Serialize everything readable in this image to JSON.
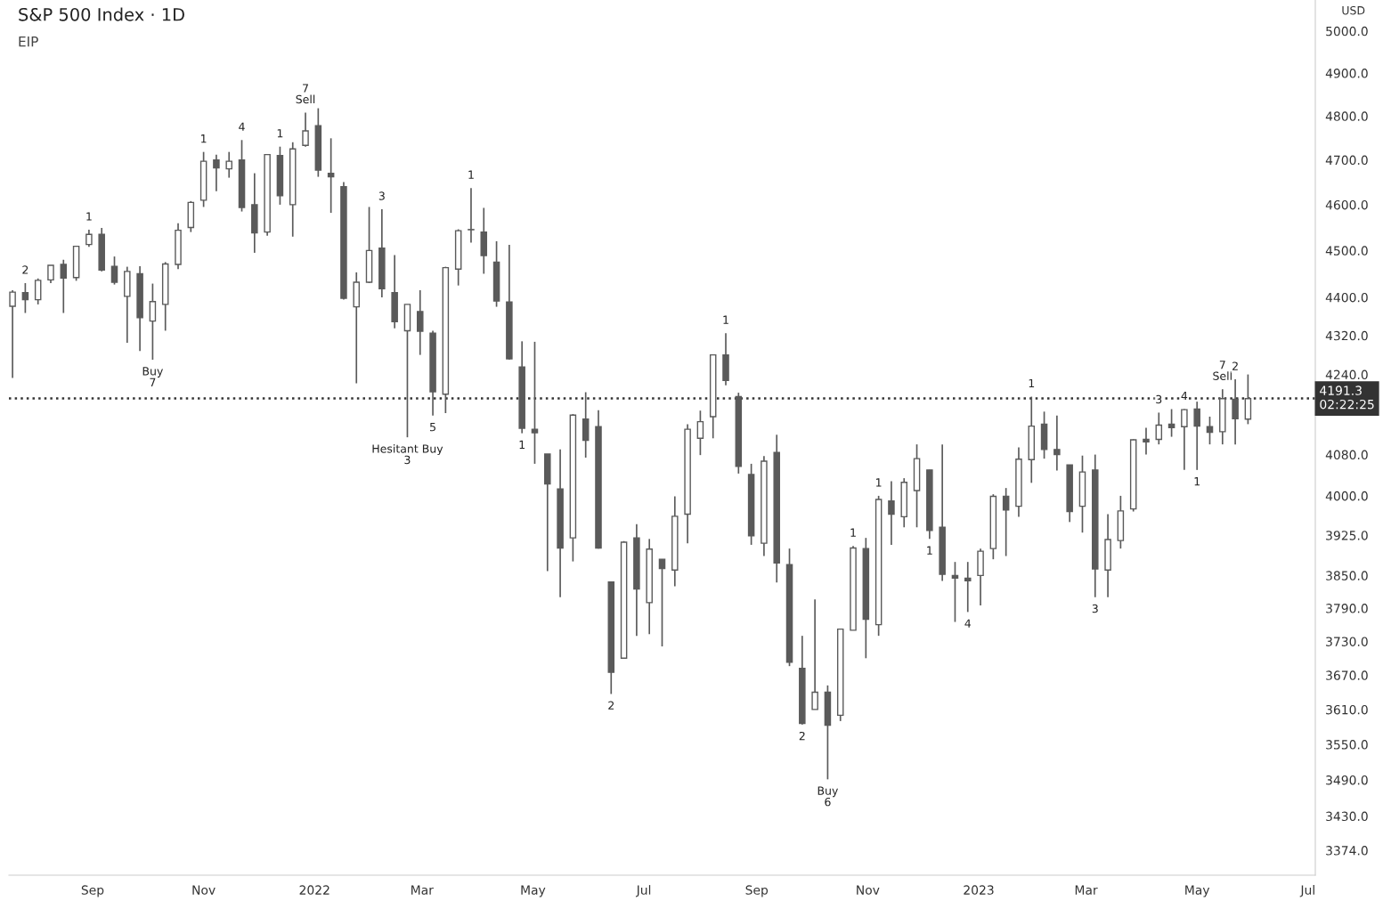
{
  "chart_data": {
    "type": "candlestick",
    "title": "S&P 500 Index · 1D",
    "subtitle": "EIP",
    "ylabel": "USD",
    "color": "#5a5a5a",
    "log": "y",
    "grid": false,
    "x": [
      "2021-07-19",
      "2021-07-26",
      "2021-08-02",
      "2021-08-09",
      "2021-08-16",
      "2021-08-23",
      "2021-08-30",
      "2021-09-06",
      "2021-09-13",
      "2021-09-20",
      "2021-09-27",
      "2021-10-04",
      "2021-10-11",
      "2021-10-18",
      "2021-10-25",
      "2021-11-01",
      "2021-11-08",
      "2021-11-15",
      "2021-11-22",
      "2021-11-29",
      "2021-12-06",
      "2021-12-13",
      "2021-12-20",
      "2021-12-27",
      "2022-01-03",
      "2022-01-10",
      "2022-01-17",
      "2022-01-24",
      "2022-01-31",
      "2022-02-07",
      "2022-02-14",
      "2022-02-21",
      "2022-02-28",
      "2022-03-07",
      "2022-03-14",
      "2022-03-21",
      "2022-03-28",
      "2022-04-04",
      "2022-04-11",
      "2022-04-18",
      "2022-04-25",
      "2022-05-02",
      "2022-05-09",
      "2022-05-16",
      "2022-05-23",
      "2022-05-30",
      "2022-06-06",
      "2022-06-13",
      "2022-06-20",
      "2022-06-27",
      "2022-07-04",
      "2022-07-11",
      "2022-07-18",
      "2022-07-25",
      "2022-08-01",
      "2022-08-08",
      "2022-08-15",
      "2022-08-22",
      "2022-08-29",
      "2022-09-05",
      "2022-09-12",
      "2022-09-19",
      "2022-09-26",
      "2022-10-03",
      "2022-10-10",
      "2022-10-17",
      "2022-10-24",
      "2022-10-31",
      "2022-11-07",
      "2022-11-14",
      "2022-11-21",
      "2022-11-28",
      "2022-12-05",
      "2022-12-12",
      "2022-12-19",
      "2022-12-26",
      "2023-01-02",
      "2023-01-09",
      "2023-01-16",
      "2023-01-23",
      "2023-01-30",
      "2023-02-06",
      "2023-02-13",
      "2023-02-20",
      "2023-02-27",
      "2023-03-06",
      "2023-03-13",
      "2023-03-20",
      "2023-03-27",
      "2023-04-03",
      "2023-04-10",
      "2023-04-17",
      "2023-04-24",
      "2023-05-01",
      "2023-05-08",
      "2023-05-15",
      "2023-05-22",
      "2023-05-29"
    ],
    "ohlc": [
      [
        4381,
        4415,
        4233,
        4411
      ],
      [
        4410,
        4430,
        4367,
        4395
      ],
      [
        4395,
        4440,
        4385,
        4436
      ],
      [
        4437,
        4468,
        4430,
        4468
      ],
      [
        4470,
        4480,
        4367,
        4441
      ],
      [
        4442,
        4510,
        4435,
        4509
      ],
      [
        4513,
        4545,
        4508,
        4535
      ],
      [
        4535,
        4549,
        4455,
        4458
      ],
      [
        4466,
        4487,
        4427,
        4432
      ],
      [
        4402,
        4465,
        4305,
        4455
      ],
      [
        4450,
        4466,
        4288,
        4357
      ],
      [
        4350,
        4429,
        4270,
        4391
      ],
      [
        4385,
        4475,
        4330,
        4471
      ],
      [
        4470,
        4559,
        4460,
        4544
      ],
      [
        4550,
        4608,
        4540,
        4605
      ],
      [
        4610,
        4718,
        4595,
        4697
      ],
      [
        4700,
        4712,
        4630,
        4682
      ],
      [
        4680,
        4718,
        4660,
        4697
      ],
      [
        4700,
        4745,
        4585,
        4594
      ],
      [
        4600,
        4670,
        4495,
        4538
      ],
      [
        4540,
        4713,
        4532,
        4712
      ],
      [
        4710,
        4730,
        4600,
        4620
      ],
      [
        4600,
        4740,
        4530,
        4725
      ],
      [
        4733,
        4808,
        4730,
        4766
      ],
      [
        4778,
        4818,
        4662,
        4677
      ],
      [
        4670,
        4749,
        4582,
        4662
      ],
      [
        4640,
        4650,
        4395,
        4398
      ],
      [
        4380,
        4453,
        4222,
        4432
      ],
      [
        4432,
        4595,
        4430,
        4500
      ],
      [
        4505,
        4590,
        4400,
        4418
      ],
      [
        4410,
        4490,
        4335,
        4349
      ],
      [
        4330,
        4385,
        4114,
        4385
      ],
      [
        4370,
        4415,
        4280,
        4329
      ],
      [
        4325,
        4330,
        4157,
        4205
      ],
      [
        4200,
        4465,
        4162,
        4463
      ],
      [
        4460,
        4546,
        4425,
        4543
      ],
      [
        4545,
        4637,
        4517,
        4545
      ],
      [
        4540,
        4593,
        4450,
        4489
      ],
      [
        4475,
        4520,
        4380,
        4392
      ],
      [
        4390,
        4512,
        4270,
        4272
      ],
      [
        4255,
        4308,
        4122,
        4132
      ],
      [
        4130,
        4307,
        4062,
        4123
      ],
      [
        4081,
        4081,
        3858,
        4023
      ],
      [
        4013,
        4090,
        3810,
        3901
      ],
      [
        3920,
        4160,
        3876,
        4158
      ],
      [
        4150,
        4204,
        4074,
        4108
      ],
      [
        4135,
        4168,
        3900,
        3901
      ],
      [
        3838,
        3838,
        3637,
        3675
      ],
      [
        3700,
        3914,
        3700,
        3912
      ],
      [
        3920,
        3946,
        3740,
        3825
      ],
      [
        3800,
        3918,
        3743,
        3899
      ],
      [
        3880,
        3880,
        3721,
        3863
      ],
      [
        3860,
        3999,
        3830,
        3961
      ],
      [
        3965,
        4140,
        3910,
        4130
      ],
      [
        4112,
        4167,
        4079,
        4145
      ],
      [
        4155,
        4280,
        4112,
        4280
      ],
      [
        4280,
        4325,
        4218,
        4228
      ],
      [
        4195,
        4203,
        4043,
        4057
      ],
      [
        4041,
        4062,
        3907,
        3924
      ],
      [
        3910,
        4077,
        3886,
        4067
      ],
      [
        4084,
        4119,
        3837,
        3873
      ],
      [
        3870,
        3900,
        3686,
        3693
      ],
      [
        3682,
        3740,
        3584,
        3586
      ],
      [
        3610,
        3806,
        3610,
        3640
      ],
      [
        3640,
        3652,
        3491,
        3583
      ],
      [
        3600,
        3753,
        3590,
        3752
      ],
      [
        3750,
        3905,
        3750,
        3901
      ],
      [
        3900,
        3920,
        3700,
        3770
      ],
      [
        3760,
        4000,
        3740,
        3993
      ],
      [
        3990,
        4028,
        3907,
        3965
      ],
      [
        3960,
        4034,
        3940,
        4026
      ],
      [
        4010,
        4100,
        3940,
        4072
      ],
      [
        4050,
        4050,
        3918,
        3934
      ],
      [
        3940,
        4100,
        3840,
        3852
      ],
      [
        3850,
        3875,
        3765,
        3845
      ],
      [
        3845,
        3875,
        3783,
        3840
      ],
      [
        3850,
        3900,
        3795,
        3895
      ],
      [
        3900,
        4003,
        3880,
        3999
      ],
      [
        3999,
        4015,
        3886,
        3973
      ],
      [
        3980,
        4094,
        3960,
        4071
      ],
      [
        4070,
        4195,
        4025,
        4136
      ],
      [
        4140,
        4165,
        4072,
        4090
      ],
      [
        4090,
        4157,
        4049,
        4080
      ],
      [
        4060,
        4060,
        3950,
        3970
      ],
      [
        3980,
        4078,
        3930,
        4046
      ],
      [
        4050,
        4080,
        3810,
        3862
      ],
      [
        3860,
        3965,
        3810,
        3917
      ],
      [
        3915,
        4000,
        3900,
        3971
      ],
      [
        3975,
        4110,
        3970,
        4109
      ],
      [
        4110,
        4133,
        4080,
        4105
      ],
      [
        4110,
        4163,
        4100,
        4138
      ],
      [
        4140,
        4170,
        4115,
        4133
      ],
      [
        4135,
        4170,
        4050,
        4169
      ],
      [
        4170,
        4185,
        4050,
        4136
      ],
      [
        4135,
        4155,
        4100,
        4124
      ],
      [
        4125,
        4210,
        4100,
        4191
      ],
      [
        4190,
        4230,
        4100,
        4151
      ],
      [
        4150,
        4240,
        4140,
        4191
      ]
    ],
    "xlim": [
      "2021-07-17",
      "2023-07-05"
    ],
    "xticks": [
      {
        "value": "2021-09-01",
        "label": "Sep"
      },
      {
        "value": "2021-11-01",
        "label": "Nov"
      },
      {
        "value": "2022-01-01",
        "label": "2022"
      },
      {
        "value": "2022-03-01",
        "label": "Mar"
      },
      {
        "value": "2022-05-01",
        "label": "May"
      },
      {
        "value": "2022-07-01",
        "label": "Jul"
      },
      {
        "value": "2022-09-01",
        "label": "Sep"
      },
      {
        "value": "2022-11-01",
        "label": "Nov"
      },
      {
        "value": "2023-01-01",
        "label": "2023"
      },
      {
        "value": "2023-03-01",
        "label": "Mar"
      },
      {
        "value": "2023-05-01",
        "label": "May"
      },
      {
        "value": "2023-07-01",
        "label": "Jul"
      }
    ],
    "ylim": [
      3334,
      5075
    ],
    "yticks": [
      {
        "value": 3374,
        "label": "3374.0"
      },
      {
        "value": 3430,
        "label": "3430.0"
      },
      {
        "value": 3490,
        "label": "3490.0"
      },
      {
        "value": 3550,
        "label": "3550.0"
      },
      {
        "value": 3610,
        "label": "3610.0"
      },
      {
        "value": 3670,
        "label": "3670.0"
      },
      {
        "value": 3730,
        "label": "3730.0"
      },
      {
        "value": 3790,
        "label": "3790.0"
      },
      {
        "value": 3850,
        "label": "3850.0"
      },
      {
        "value": 3925,
        "label": "3925.0"
      },
      {
        "value": 4000,
        "label": "4000.0"
      },
      {
        "value": 4080,
        "label": "4080.0"
      },
      {
        "value": 4240,
        "label": "4240.0"
      },
      {
        "value": 4320,
        "label": "4320.0"
      },
      {
        "value": 4400,
        "label": "4400.0"
      },
      {
        "value": 4500,
        "label": "4500.0"
      },
      {
        "value": 4600,
        "label": "4600.0"
      },
      {
        "value": 4700,
        "label": "4700.0"
      },
      {
        "value": 4800,
        "label": "4800.0"
      },
      {
        "value": 4900,
        "label": "4900.0"
      },
      {
        "value": 5000,
        "label": "5000.0"
      }
    ],
    "ref_lines": [
      {
        "axis": "y",
        "value": 4191.3,
        "label": "4191.3\n02:22:25",
        "color": "#333333",
        "line_style": "dotted"
      }
    ],
    "annotations": [
      {
        "text": "2",
        "x": "2021-07-26",
        "y": 4430
      },
      {
        "text": "1",
        "x": "2021-08-30",
        "y": 4545
      },
      {
        "text": "Buy",
        "x": "2021-10-04",
        "y": 4270
      },
      {
        "text": "7",
        "x": "2021-10-04",
        "y": 4270
      },
      {
        "text": "1",
        "x": "2021-11-01",
        "y": 4718
      },
      {
        "text": "4",
        "x": "2021-11-22",
        "y": 4745
      },
      {
        "text": "1",
        "x": "2021-12-13",
        "y": 4730
      },
      {
        "text": "Sell",
        "x": "2021-12-27",
        "y": 4808
      },
      {
        "text": "7",
        "x": "2021-12-27",
        "y": 4808
      },
      {
        "text": "3",
        "x": "2022-02-07",
        "y": 4590
      },
      {
        "text": "1",
        "x": "2022-03-28",
        "y": 4637
      },
      {
        "text": "5",
        "x": "2022-03-07",
        "y": 4157
      },
      {
        "text": "Hesitant Buy",
        "x": "2022-02-21",
        "y": 4114
      },
      {
        "text": "3",
        "x": "2022-02-21",
        "y": 4114
      },
      {
        "text": "1",
        "x": "2022-04-25",
        "y": 4122
      },
      {
        "text": "2",
        "x": "2022-06-13",
        "y": 3637
      },
      {
        "text": "1",
        "x": "2022-08-15",
        "y": 4325
      },
      {
        "text": "2",
        "x": "2022-09-26",
        "y": 3584
      },
      {
        "text": "Buy",
        "x": "2022-10-10",
        "y": 3491
      },
      {
        "text": "6",
        "x": "2022-10-10",
        "y": 3491
      },
      {
        "text": "1",
        "x": "2022-10-24",
        "y": 3905
      },
      {
        "text": "1",
        "x": "2022-11-07",
        "y": 4000
      },
      {
        "text": "1",
        "x": "2022-12-05",
        "y": 3918
      },
      {
        "text": "4",
        "x": "2022-12-26",
        "y": 3783
      },
      {
        "text": "1",
        "x": "2023-01-30",
        "y": 4195
      },
      {
        "text": "3",
        "x": "2023-03-06",
        "y": 3810
      },
      {
        "text": "3",
        "x": "2023-04-10",
        "y": 4163
      },
      {
        "text": "4",
        "x": "2023-04-24",
        "y": 4170
      },
      {
        "text": "1",
        "x": "2023-05-01",
        "y": 4050
      },
      {
        "text": "Sell",
        "x": "2023-05-15",
        "y": 4210
      },
      {
        "text": "7",
        "x": "2023-05-15",
        "y": 4210
      },
      {
        "text": "2",
        "x": "2023-05-22",
        "y": 4230
      }
    ]
  }
}
